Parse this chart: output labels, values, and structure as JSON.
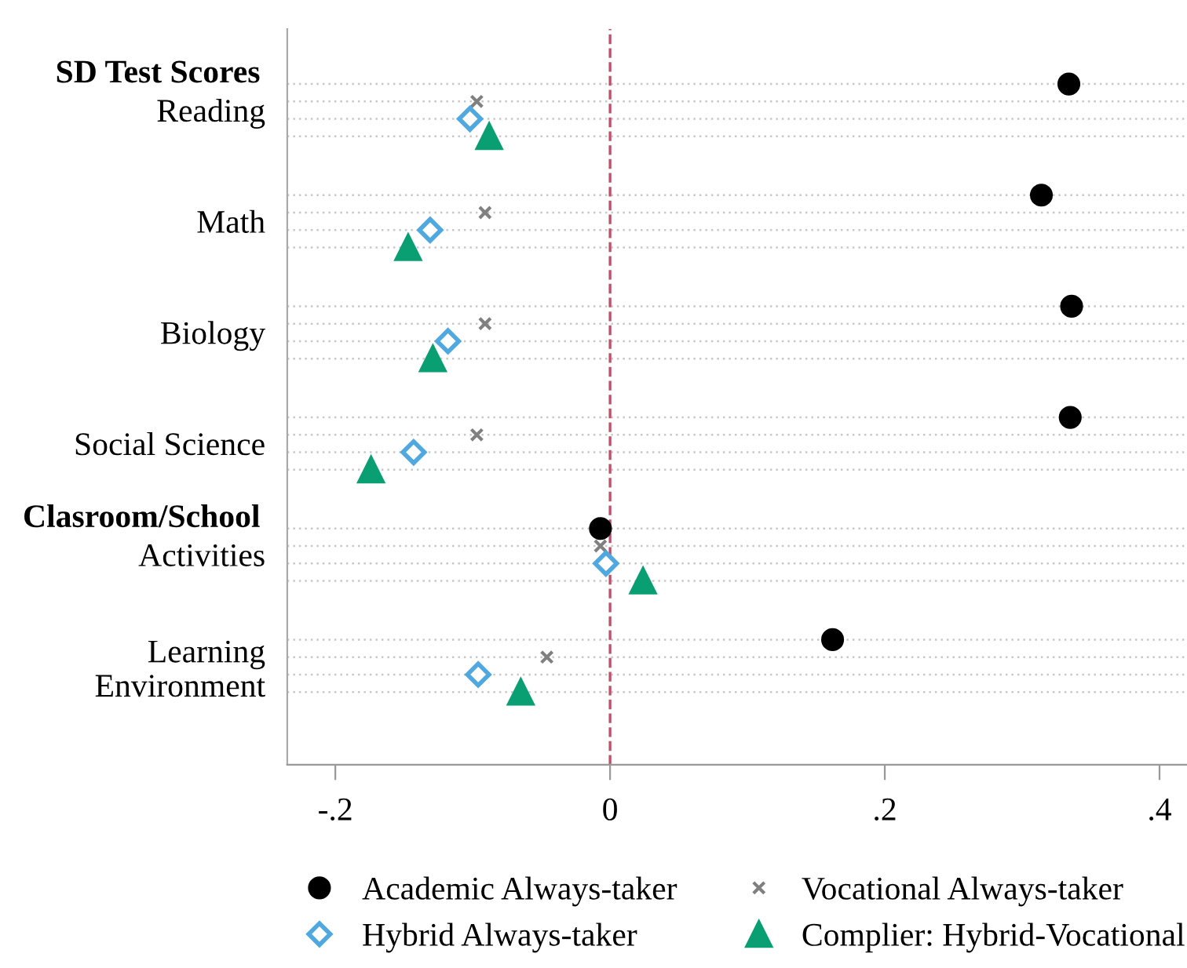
{
  "chart_data": {
    "type": "scatter",
    "orientation": "horizontal",
    "categories": [
      "Reading",
      "Math",
      "Biology",
      "Social Science",
      "Activities",
      "Learning\nEnvironment"
    ],
    "series": [
      {
        "name": "Academic Always-taker",
        "color": "#000000",
        "marker": "circle",
        "values": [
          0.334,
          0.314,
          0.336,
          0.335,
          -0.007,
          0.162
        ]
      },
      {
        "name": "Vocational Always-taker",
        "color": "#808080",
        "marker": "cross",
        "values": [
          -0.097,
          -0.091,
          -0.091,
          -0.097,
          -0.007,
          -0.046
        ]
      },
      {
        "name": "Hybrid Always-taker",
        "color": "#4fa9e0",
        "marker": "diamond",
        "values": [
          -0.102,
          -0.131,
          -0.118,
          -0.143,
          -0.003,
          -0.096
        ]
      },
      {
        "name": "Complier: Hybrid-Vocational",
        "color": "#0a9e73",
        "marker": "triangle",
        "values": [
          -0.088,
          -0.147,
          -0.129,
          -0.174,
          0.024,
          -0.065
        ]
      }
    ],
    "annotations": [
      "SD Test Scores",
      "Clasroom/School"
    ],
    "xlim": [
      -0.235,
      0.42
    ],
    "xticks": [
      {
        "value": -0.2,
        "label": "-.2"
      },
      0,
      {
        "value": 0.2,
        "label": ".2"
      },
      {
        "value": 0.4,
        "label": ".4"
      }
    ],
    "ref_lines": [
      {
        "axis": "x",
        "value": 0,
        "color": "#c0506a",
        "line_style": "dashed"
      }
    ],
    "grid": "y",
    "legend": "bottom"
  }
}
